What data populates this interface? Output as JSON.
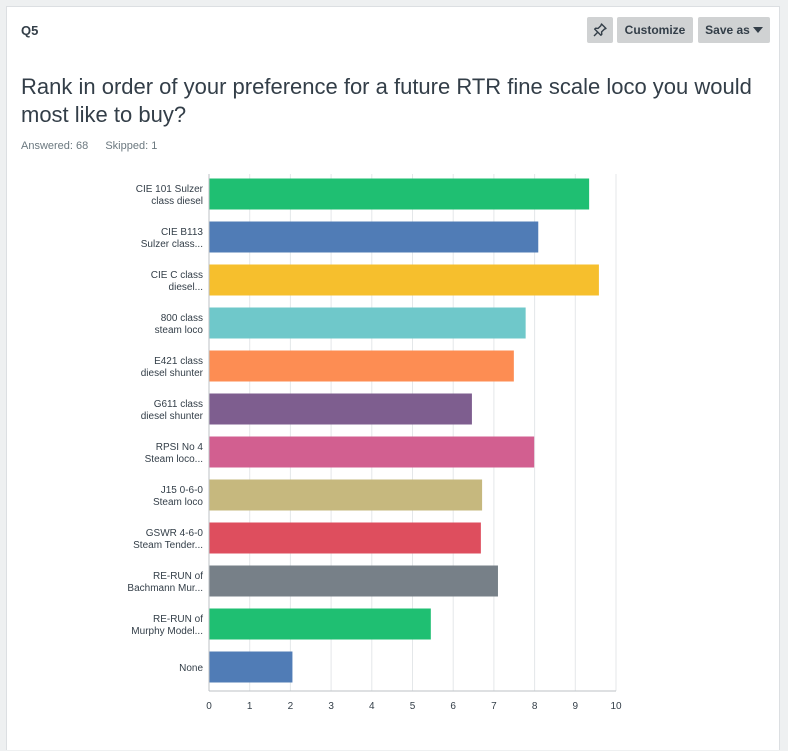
{
  "header": {
    "question_number": "Q5",
    "customize_label": "Customize",
    "save_as_label": "Save as"
  },
  "question": {
    "title": "Rank in order of your preference for a future RTR fine scale loco you would most like to buy?",
    "answered": "Answered: 68",
    "skipped": "Skipped: 1"
  },
  "icons": {
    "pin": "pin-icon",
    "save_caret": "caret-down-icon"
  },
  "colors": {
    "background": "#eef0f1",
    "axis": "#bcc2c6",
    "grid": "#e4e7e9",
    "text": "#333e48"
  },
  "chart_data": {
    "type": "bar",
    "orientation": "horizontal",
    "categories": [
      [
        "CIE 101 Sulzer",
        "class diesel"
      ],
      [
        "CIE B113",
        "Sulzer class..."
      ],
      [
        "CIE C class",
        "diesel..."
      ],
      [
        "800 class",
        "steam loco"
      ],
      [
        "E421 class",
        "diesel shunter"
      ],
      [
        "G611 class",
        "diesel shunter"
      ],
      [
        "RPSI No 4",
        "Steam loco..."
      ],
      [
        "J15 0-6-0",
        "Steam loco"
      ],
      [
        "GSWR 4-6-0",
        "Steam Tender..."
      ],
      [
        "RE-RUN of",
        "Bachmann Mur..."
      ],
      [
        "RE-RUN of",
        "Murphy Model..."
      ],
      [
        "None"
      ]
    ],
    "values": [
      9.34,
      8.09,
      9.58,
      7.78,
      7.49,
      6.46,
      7.99,
      6.71,
      6.68,
      7.1,
      5.45,
      2.05
    ],
    "colors": [
      "#1fbf72",
      "#507cb6",
      "#f6bf2d",
      "#6fc8ca",
      "#fd8d53",
      "#7e5e8f",
      "#d25f90",
      "#c6b87e",
      "#de4e5e",
      "#778088",
      "#1fbf72",
      "#507cb6"
    ],
    "xlim": [
      0,
      10
    ],
    "xticks": [
      0,
      1,
      2,
      3,
      4,
      5,
      6,
      7,
      8,
      9,
      10
    ],
    "grid": true,
    "legend": false
  }
}
